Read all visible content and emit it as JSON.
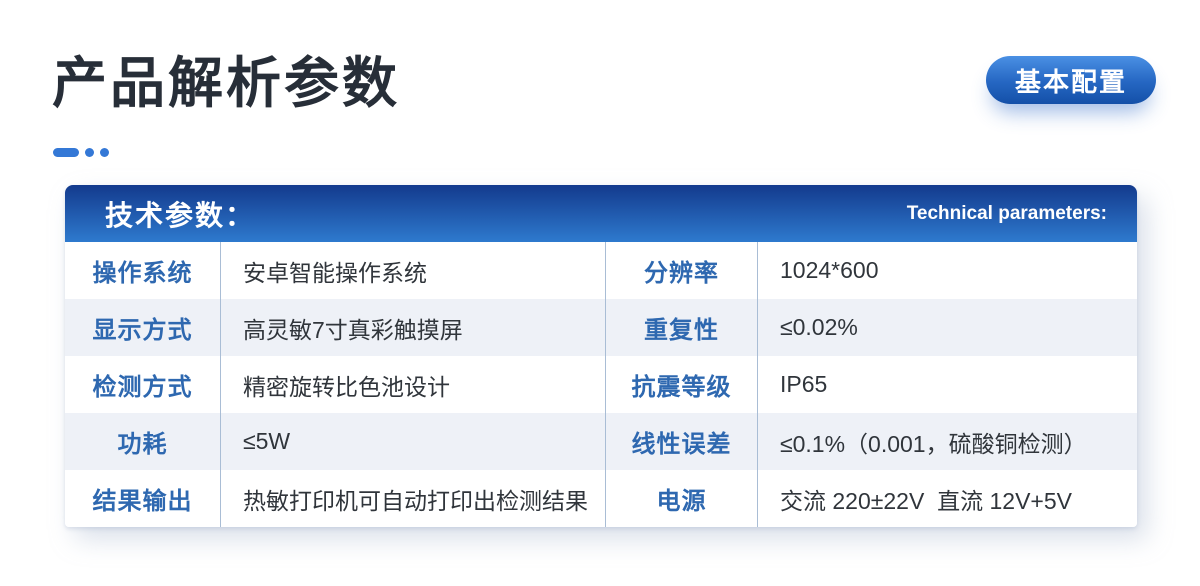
{
  "page": {
    "title": "产品解析参数",
    "badge_label": "基本配置"
  },
  "table": {
    "header": {
      "title_zh": "技术参数：",
      "title_en": "Technical parameters:"
    },
    "rows": [
      {
        "label_left": "操作系统",
        "value_left": "安卓智能操作系统",
        "label_right": "分辨率",
        "value_right": "1024*600"
      },
      {
        "label_left": "显示方式",
        "value_left": "高灵敏7寸真彩触摸屏",
        "label_right": "重复性",
        "value_right": "≤0.02%"
      },
      {
        "label_left": "检测方式",
        "value_left": "精密旋转比色池设计",
        "label_right": "抗震等级",
        "value_right": "IP65"
      },
      {
        "label_left": "功耗",
        "value_left": "≤5W",
        "label_right": "线性误差",
        "value_right": "≤0.1%（0.001，硫酸铜检测）"
      },
      {
        "label_left": "结果输出",
        "value_left": "热敏打印机可自动打印出检测结果",
        "label_right": "电源",
        "value_right": "交流 220±22V  直流 12V+5V"
      }
    ]
  },
  "colors": {
    "accent_blue": "#3478d6",
    "title_text": "#272e38",
    "header_gradient_top": "#133a8d",
    "header_gradient_bottom": "#2e7ace",
    "button_gradient_top": "#4a90e4",
    "button_gradient_bottom": "#1450a8",
    "row_alt_bg": "#eef1f7",
    "divider": "#a9bdd5",
    "param_label_blue": "#2e68b0",
    "param_value_text": "#30353b"
  }
}
